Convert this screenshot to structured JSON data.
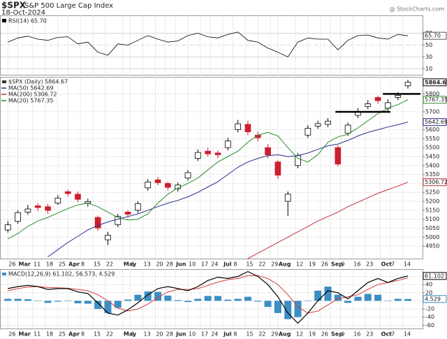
{
  "header": {
    "symbol": "$SPX",
    "name": "S&P 500 Large Cap Index",
    "date": "18-Oct-2024",
    "source": "@ StockCharts.com"
  },
  "chart_data": [
    {
      "type": "rsi",
      "label": "RSI(14) 65.70",
      "last_label": "65.70",
      "color": "#000000",
      "x": [
        0,
        4,
        8,
        12,
        16,
        20,
        24,
        28,
        32,
        36,
        40,
        44,
        48,
        52,
        56,
        60,
        64,
        68,
        72,
        76,
        80,
        84,
        88,
        92,
        96,
        100,
        104,
        108,
        112,
        116,
        120,
        124,
        128,
        132,
        136,
        140,
        144,
        148,
        152,
        156,
        160
      ],
      "values": [
        55,
        62,
        65,
        60,
        58,
        63,
        64,
        52,
        55,
        38,
        33,
        52,
        50,
        58,
        66,
        60,
        55,
        57,
        66,
        70,
        64,
        62,
        68,
        72,
        58,
        55,
        45,
        38,
        30,
        55,
        62,
        60,
        60,
        42,
        58,
        66,
        67,
        62,
        60,
        68,
        65.7
      ],
      "xlim": [
        -3,
        166
      ],
      "ylim": [
        0,
        100
      ],
      "yticks": [
        10,
        30,
        50,
        70
      ]
    },
    {
      "type": "candlestick",
      "legend": "$SPX (Daily) 5864.67",
      "x": [
        0,
        4,
        8,
        12,
        16,
        20,
        24,
        28,
        32,
        36,
        40,
        44,
        48,
        52,
        56,
        60,
        64,
        68,
        72,
        76,
        80,
        84,
        88,
        92,
        96,
        100,
        104,
        108,
        112,
        116,
        120,
        124,
        128,
        132,
        136,
        140,
        144,
        148,
        152,
        156,
        160
      ],
      "open": [
        5040,
        5088,
        5140,
        5175,
        5170,
        5190,
        5254,
        5240,
        5190,
        5110,
        4985,
        5070,
        5140,
        5150,
        5275,
        5320,
        5300,
        5270,
        5330,
        5440,
        5480,
        5470,
        5500,
        5600,
        5630,
        5570,
        5500,
        5420,
        5200,
        5400,
        5570,
        5620,
        5630,
        5500,
        5580,
        5680,
        5730,
        5780,
        5720,
        5780,
        5845
      ],
      "high": [
        5090,
        5150,
        5180,
        5190,
        5185,
        5235,
        5265,
        5255,
        5215,
        5120,
        5030,
        5130,
        5150,
        5200,
        5325,
        5335,
        5310,
        5305,
        5375,
        5490,
        5500,
        5485,
        5555,
        5655,
        5650,
        5590,
        5520,
        5430,
        5255,
        5470,
        5625,
        5650,
        5665,
        5515,
        5640,
        5720,
        5765,
        5790,
        5770,
        5810,
        5878
      ],
      "low": [
        5025,
        5075,
        5125,
        5145,
        5130,
        5180,
        5225,
        5195,
        5170,
        5035,
        4955,
        5055,
        5110,
        5135,
        5260,
        5290,
        5260,
        5255,
        5315,
        5425,
        5450,
        5440,
        5485,
        5585,
        5570,
        5535,
        5440,
        5325,
        5119,
        5385,
        5555,
        5605,
        5615,
        5395,
        5565,
        5665,
        5715,
        5745,
        5705,
        5765,
        5830
      ],
      "close": [
        5069,
        5137,
        5157,
        5165,
        5149,
        5218,
        5243,
        5211,
        5199,
        5051,
        5011,
        5116,
        5128,
        5187,
        5308,
        5304,
        5278,
        5291,
        5360,
        5473,
        5465,
        5460,
        5537,
        5633,
        5588,
        5555,
        5459,
        5346,
        5240,
        5455,
        5608,
        5634,
        5648,
        5408,
        5626,
        5702,
        5745,
        5762,
        5751,
        5792,
        5864.67
      ],
      "up_color": "#000000",
      "down_color": "#cc1f2f",
      "series": [
        {
          "name": "MA(50) 5642.69",
          "color": "#2b2f8f",
          "values": [
            null,
            null,
            null,
            null,
            4890,
            4930,
            4970,
            5005,
            5040,
            5065,
            5085,
            5100,
            5115,
            5130,
            5150,
            5170,
            5190,
            5205,
            5225,
            5250,
            5280,
            5310,
            5350,
            5390,
            5420,
            5440,
            5455,
            5460,
            5450,
            5455,
            5470,
            5490,
            5510,
            5520,
            5540,
            5565,
            5585,
            5600,
            5615,
            5628,
            5642.69
          ]
        },
        {
          "name": "MA(200) 5306.72",
          "color": "#c8323a",
          "values": [
            null,
            null,
            null,
            null,
            null,
            null,
            null,
            null,
            null,
            null,
            null,
            null,
            null,
            null,
            null,
            null,
            null,
            null,
            null,
            null,
            null,
            null,
            null,
            null,
            4880,
            4910,
            4940,
            4970,
            5000,
            5030,
            5060,
            5090,
            5115,
            5140,
            5170,
            5195,
            5220,
            5245,
            5265,
            5285,
            5306.72
          ]
        },
        {
          "name": "MA(20) 5767.35",
          "color": "#2e8b2e",
          "values": [
            4990,
            5020,
            5060,
            5090,
            5110,
            5135,
            5160,
            5180,
            5190,
            5170,
            5140,
            5110,
            5095,
            5100,
            5130,
            5190,
            5240,
            5275,
            5300,
            5330,
            5375,
            5420,
            5450,
            5480,
            5530,
            5570,
            5585,
            5565,
            5500,
            5440,
            5420,
            5460,
            5530,
            5560,
            5575,
            5610,
            5650,
            5690,
            5720,
            5740,
            5767.35
          ]
        }
      ],
      "levels": [
        {
          "value": 5700,
          "from": 131,
          "to": 153
        },
        {
          "value": 5800,
          "from": 150,
          "to": 165
        }
      ],
      "xlim": [
        -3,
        166
      ],
      "ylim": [
        4880,
        5895
      ],
      "yticks": [
        4950,
        5000,
        5050,
        5100,
        5150,
        5200,
        5250,
        5300,
        5350,
        5400,
        5450,
        5500,
        5550,
        5600,
        5700,
        5800
      ],
      "xticks": [
        {
          "value": 0,
          "label": "26"
        },
        {
          "value": 4,
          "label": "Mar"
        },
        {
          "value": 10,
          "label": "11"
        },
        {
          "value": 15,
          "label": "18"
        },
        {
          "value": 20,
          "label": "25"
        },
        {
          "value": 24,
          "label": "Apr"
        },
        {
          "value": 29,
          "label": "8"
        },
        {
          "value": 34,
          "label": "15"
        },
        {
          "value": 39,
          "label": "22"
        },
        {
          "value": 46,
          "label": "May"
        },
        {
          "value": 49,
          "label": "6"
        },
        {
          "value": 54,
          "label": "13"
        },
        {
          "value": 59,
          "label": "20"
        },
        {
          "value": 63,
          "label": "28"
        },
        {
          "value": 67,
          "label": "Jun"
        },
        {
          "value": 72,
          "label": "10"
        },
        {
          "value": 77,
          "label": "17"
        },
        {
          "value": 81,
          "label": "24"
        },
        {
          "value": 86,
          "label": "Jul"
        },
        {
          "value": 90,
          "label": "8"
        },
        {
          "value": 95,
          "label": "15"
        },
        {
          "value": 100,
          "label": "22"
        },
        {
          "value": 105,
          "label": "29"
        },
        {
          "value": 108,
          "label": "Aug"
        },
        {
          "value": 115,
          "label": "12"
        },
        {
          "value": 120,
          "label": "19"
        },
        {
          "value": 125,
          "label": "26"
        },
        {
          "value": 129,
          "label": "Sep"
        },
        {
          "value": 133,
          "label": "9"
        },
        {
          "value": 138,
          "label": "16"
        },
        {
          "value": 143,
          "label": "23"
        },
        {
          "value": 149,
          "label": "Oct"
        },
        {
          "value": 153,
          "label": "7"
        },
        {
          "value": 158,
          "label": "14"
        }
      ]
    },
    {
      "type": "macd",
      "label": "MACD(12,26,9) 61.102, 56.573, 4.529",
      "macd_color": "#000000",
      "signal_color": "#d43a3a",
      "histogram_color": "#3b8fc4",
      "x": [
        0,
        4,
        8,
        12,
        16,
        20,
        24,
        28,
        32,
        36,
        40,
        44,
        48,
        52,
        56,
        60,
        64,
        68,
        72,
        76,
        80,
        84,
        88,
        92,
        96,
        100,
        104,
        108,
        112,
        116,
        120,
        124,
        128,
        132,
        136,
        140,
        144,
        148,
        152,
        156,
        160
      ],
      "macd": [
        30,
        35,
        38,
        35,
        28,
        30,
        30,
        22,
        18,
        -5,
        -30,
        -35,
        -22,
        -5,
        15,
        30,
        35,
        30,
        25,
        35,
        50,
        58,
        55,
        60,
        72,
        60,
        40,
        10,
        -30,
        -55,
        -30,
        0,
        25,
        20,
        5,
        25,
        45,
        55,
        45,
        55,
        61.102
      ],
      "signal": [
        25,
        30,
        34,
        35,
        33,
        32,
        31,
        28,
        25,
        15,
        0,
        -18,
        -25,
        -20,
        -8,
        8,
        22,
        28,
        28,
        30,
        38,
        46,
        52,
        55,
        62,
        62,
        55,
        40,
        15,
        -15,
        -30,
        -25,
        -10,
        5,
        10,
        15,
        28,
        40,
        45,
        50,
        56.573
      ],
      "histogram": [
        5,
        5,
        4,
        0,
        -5,
        -2,
        -1,
        -6,
        -7,
        -20,
        -30,
        -17,
        3,
        15,
        23,
        22,
        13,
        2,
        -3,
        5,
        12,
        12,
        3,
        5,
        10,
        -2,
        -15,
        -30,
        -45,
        -40,
        0,
        25,
        35,
        15,
        -5,
        10,
        17,
        15,
        0,
        5,
        4.529
      ],
      "xlim": [
        -3,
        166
      ],
      "ylim": [
        -68,
        78
      ],
      "yticks": [
        -60,
        -40,
        -20,
        0,
        20,
        40,
        60
      ]
    }
  ]
}
